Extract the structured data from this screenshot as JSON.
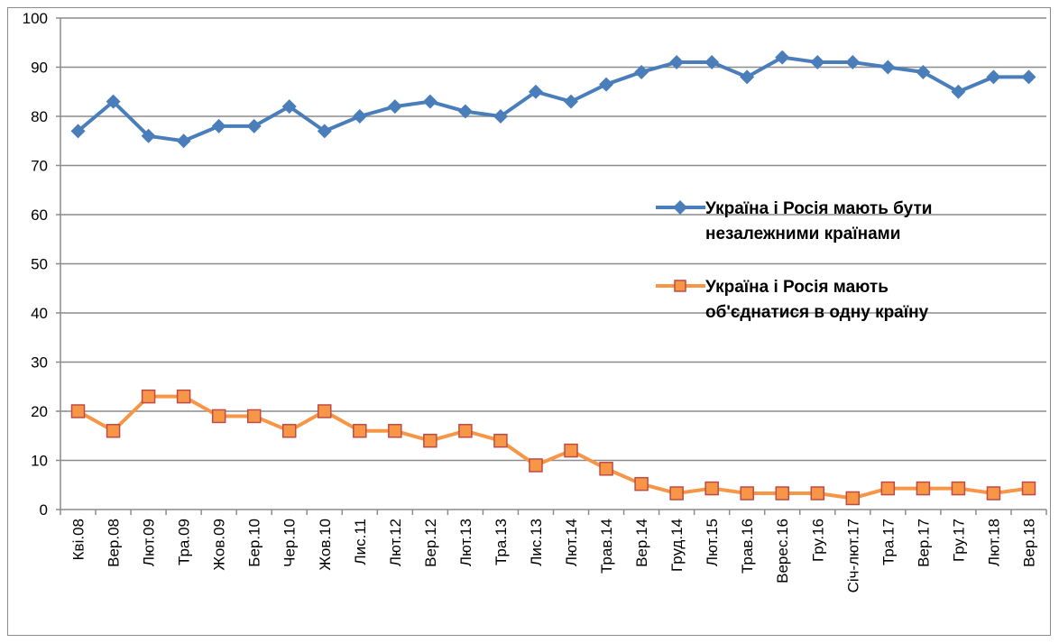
{
  "chart_data": {
    "type": "line",
    "title": "",
    "xlabel": "",
    "ylabel": "",
    "ylim": [
      0,
      100
    ],
    "yticks": [
      0,
      10,
      20,
      30,
      40,
      50,
      60,
      70,
      80,
      90,
      100
    ],
    "grid": true,
    "legend_position": "right-center",
    "categories": [
      "Кві.08",
      "Вер.08",
      "Лют.09",
      "Тра.09",
      "Жов.09",
      "Бер.10",
      "Чер.10",
      "Жов.10",
      "Лис.11",
      "Лют.12",
      "Вер.12",
      "Лют.13",
      "Тра.13",
      "Лис.13",
      "Лют.14",
      "Трав.14",
      "Вер.14",
      "Груд.14",
      "Лют.15",
      "Трав.16",
      "Верес.16",
      "Гру.16",
      "Січ-лют.17",
      "Тра.17",
      "Вер.17",
      "Гру.17",
      "Лют.18",
      "Вер.18"
    ],
    "series": [
      {
        "name": "Україна і Росія мають бути незалежними країнами",
        "legend_lines": [
          "Україна і Росія мають бути",
          "незалежними країнами"
        ],
        "color": "#4a7ebb",
        "marker": "diamond",
        "values": [
          77,
          83,
          76,
          75,
          78,
          78,
          82,
          77,
          80,
          82,
          83,
          81,
          80,
          85,
          83,
          86.5,
          89,
          91,
          91,
          88,
          92,
          91,
          91,
          90,
          89,
          85,
          88,
          88
        ]
      },
      {
        "name": "Україна і Росія мають об'єднатися в одну країну",
        "legend_lines": [
          "Україна і Росія мають",
          "об'єднатися в одну країну"
        ],
        "color": "#f79646",
        "marker_edge": "#be4b48",
        "marker": "square",
        "values": [
          20,
          16,
          23,
          23,
          19,
          19,
          16,
          20,
          16,
          16,
          14,
          16,
          14,
          9,
          12,
          8.3,
          5.2,
          3.3,
          4.3,
          3.3,
          3.3,
          3.3,
          2.3,
          4.3,
          4.3,
          4.3,
          3.3,
          4.3
        ]
      }
    ]
  }
}
